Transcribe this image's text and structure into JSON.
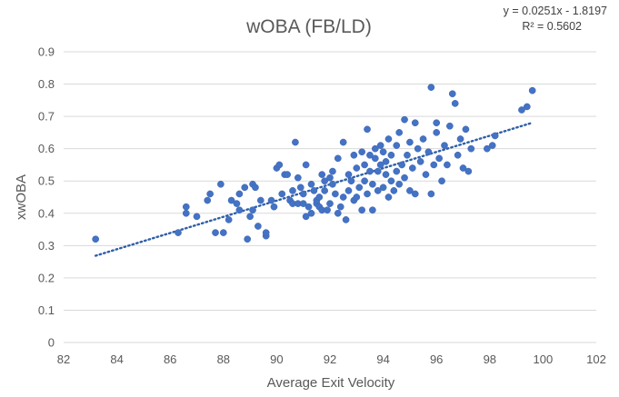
{
  "chart_data": {
    "type": "scatter",
    "title": "wOBA (FB/LD)",
    "xlabel": "Average Exit Velocity",
    "ylabel": "xwOBA",
    "xlim": [
      82,
      102
    ],
    "ylim": [
      0,
      0.9
    ],
    "x_ticks": [
      "82",
      "84",
      "86",
      "88",
      "90",
      "92",
      "94",
      "96",
      "98",
      "100",
      "102"
    ],
    "y_ticks": [
      "0",
      "0.1",
      "0.2",
      "0.3",
      "0.4",
      "0.5",
      "0.6",
      "0.7",
      "0.8",
      "0.9"
    ],
    "grid": "horizontal",
    "legend": "none",
    "point_color": "#4472c4",
    "trendline": {
      "type": "linear",
      "slope": 0.0251,
      "intercept": -1.8197,
      "x_range": [
        83.2,
        99.6
      ],
      "equation_label": "y = 0.0251x - 1.8197",
      "r2_label": "R² = 0.5602",
      "color": "#2e5fa8"
    },
    "series": [
      {
        "points": [
          [
            83.2,
            0.32
          ],
          [
            86.3,
            0.34
          ],
          [
            86.6,
            0.4
          ],
          [
            86.6,
            0.42
          ],
          [
            87.0,
            0.39
          ],
          [
            87.4,
            0.44
          ],
          [
            87.5,
            0.46
          ],
          [
            87.7,
            0.34
          ],
          [
            87.9,
            0.49
          ],
          [
            88.0,
            0.34
          ],
          [
            88.2,
            0.38
          ],
          [
            88.3,
            0.44
          ],
          [
            88.5,
            0.43
          ],
          [
            88.6,
            0.41
          ],
          [
            88.6,
            0.46
          ],
          [
            88.8,
            0.48
          ],
          [
            88.9,
            0.32
          ],
          [
            89.0,
            0.39
          ],
          [
            89.1,
            0.49
          ],
          [
            89.1,
            0.41
          ],
          [
            89.2,
            0.48
          ],
          [
            89.3,
            0.36
          ],
          [
            89.4,
            0.44
          ],
          [
            89.6,
            0.33
          ],
          [
            89.6,
            0.34
          ],
          [
            89.8,
            0.44
          ],
          [
            89.9,
            0.42
          ],
          [
            90.0,
            0.54
          ],
          [
            90.1,
            0.55
          ],
          [
            90.2,
            0.46
          ],
          [
            90.3,
            0.52
          ],
          [
            90.4,
            0.52
          ],
          [
            90.5,
            0.44
          ],
          [
            90.6,
            0.43
          ],
          [
            90.6,
            0.47
          ],
          [
            90.7,
            0.62
          ],
          [
            90.8,
            0.51
          ],
          [
            90.8,
            0.43
          ],
          [
            90.9,
            0.48
          ],
          [
            91.0,
            0.43
          ],
          [
            91.0,
            0.46
          ],
          [
            91.1,
            0.55
          ],
          [
            91.1,
            0.39
          ],
          [
            91.2,
            0.42
          ],
          [
            91.3,
            0.49
          ],
          [
            91.3,
            0.4
          ],
          [
            91.4,
            0.47
          ],
          [
            91.5,
            0.43
          ],
          [
            91.5,
            0.44
          ],
          [
            91.6,
            0.45
          ],
          [
            91.6,
            0.42
          ],
          [
            91.7,
            0.41
          ],
          [
            91.7,
            0.52
          ],
          [
            91.8,
            0.47
          ],
          [
            91.8,
            0.5
          ],
          [
            91.9,
            0.41
          ],
          [
            92.0,
            0.43
          ],
          [
            92.0,
            0.51
          ],
          [
            92.1,
            0.49
          ],
          [
            92.1,
            0.53
          ],
          [
            92.2,
            0.46
          ],
          [
            92.3,
            0.4
          ],
          [
            92.3,
            0.57
          ],
          [
            92.4,
            0.42
          ],
          [
            92.5,
            0.45
          ],
          [
            92.5,
            0.62
          ],
          [
            92.6,
            0.38
          ],
          [
            92.7,
            0.47
          ],
          [
            92.7,
            0.52
          ],
          [
            92.8,
            0.5
          ],
          [
            92.9,
            0.44
          ],
          [
            92.9,
            0.58
          ],
          [
            93.0,
            0.45
          ],
          [
            93.0,
            0.54
          ],
          [
            93.1,
            0.48
          ],
          [
            93.2,
            0.41
          ],
          [
            93.2,
            0.59
          ],
          [
            93.3,
            0.5
          ],
          [
            93.3,
            0.55
          ],
          [
            93.4,
            0.46
          ],
          [
            93.4,
            0.66
          ],
          [
            93.5,
            0.53
          ],
          [
            93.5,
            0.58
          ],
          [
            93.6,
            0.41
          ],
          [
            93.6,
            0.49
          ],
          [
            93.7,
            0.57
          ],
          [
            93.7,
            0.6
          ],
          [
            93.8,
            0.47
          ],
          [
            93.8,
            0.53
          ],
          [
            93.9,
            0.55
          ],
          [
            93.9,
            0.61
          ],
          [
            94.0,
            0.48
          ],
          [
            94.0,
            0.59
          ],
          [
            94.1,
            0.52
          ],
          [
            94.1,
            0.56
          ],
          [
            94.2,
            0.45
          ],
          [
            94.2,
            0.63
          ],
          [
            94.3,
            0.5
          ],
          [
            94.3,
            0.58
          ],
          [
            94.4,
            0.47
          ],
          [
            94.5,
            0.53
          ],
          [
            94.5,
            0.61
          ],
          [
            94.6,
            0.49
          ],
          [
            94.6,
            0.65
          ],
          [
            94.7,
            0.55
          ],
          [
            94.8,
            0.51
          ],
          [
            94.8,
            0.69
          ],
          [
            94.9,
            0.58
          ],
          [
            95.0,
            0.47
          ],
          [
            95.0,
            0.62
          ],
          [
            95.1,
            0.54
          ],
          [
            95.2,
            0.68
          ],
          [
            95.2,
            0.46
          ],
          [
            95.3,
            0.6
          ],
          [
            95.4,
            0.56
          ],
          [
            95.5,
            0.63
          ],
          [
            95.6,
            0.52
          ],
          [
            95.7,
            0.59
          ],
          [
            95.8,
            0.46
          ],
          [
            95.8,
            0.79
          ],
          [
            95.9,
            0.55
          ],
          [
            96.0,
            0.65
          ],
          [
            96.0,
            0.68
          ],
          [
            96.1,
            0.57
          ],
          [
            96.2,
            0.5
          ],
          [
            96.3,
            0.61
          ],
          [
            96.4,
            0.55
          ],
          [
            96.5,
            0.67
          ],
          [
            96.6,
            0.77
          ],
          [
            96.7,
            0.74
          ],
          [
            96.8,
            0.58
          ],
          [
            96.9,
            0.63
          ],
          [
            97.0,
            0.54
          ],
          [
            97.1,
            0.66
          ],
          [
            97.2,
            0.53
          ],
          [
            97.3,
            0.6
          ],
          [
            97.9,
            0.6
          ],
          [
            98.1,
            0.61
          ],
          [
            98.2,
            0.64
          ],
          [
            99.2,
            0.72
          ],
          [
            99.4,
            0.73
          ],
          [
            99.6,
            0.78
          ]
        ]
      }
    ]
  }
}
